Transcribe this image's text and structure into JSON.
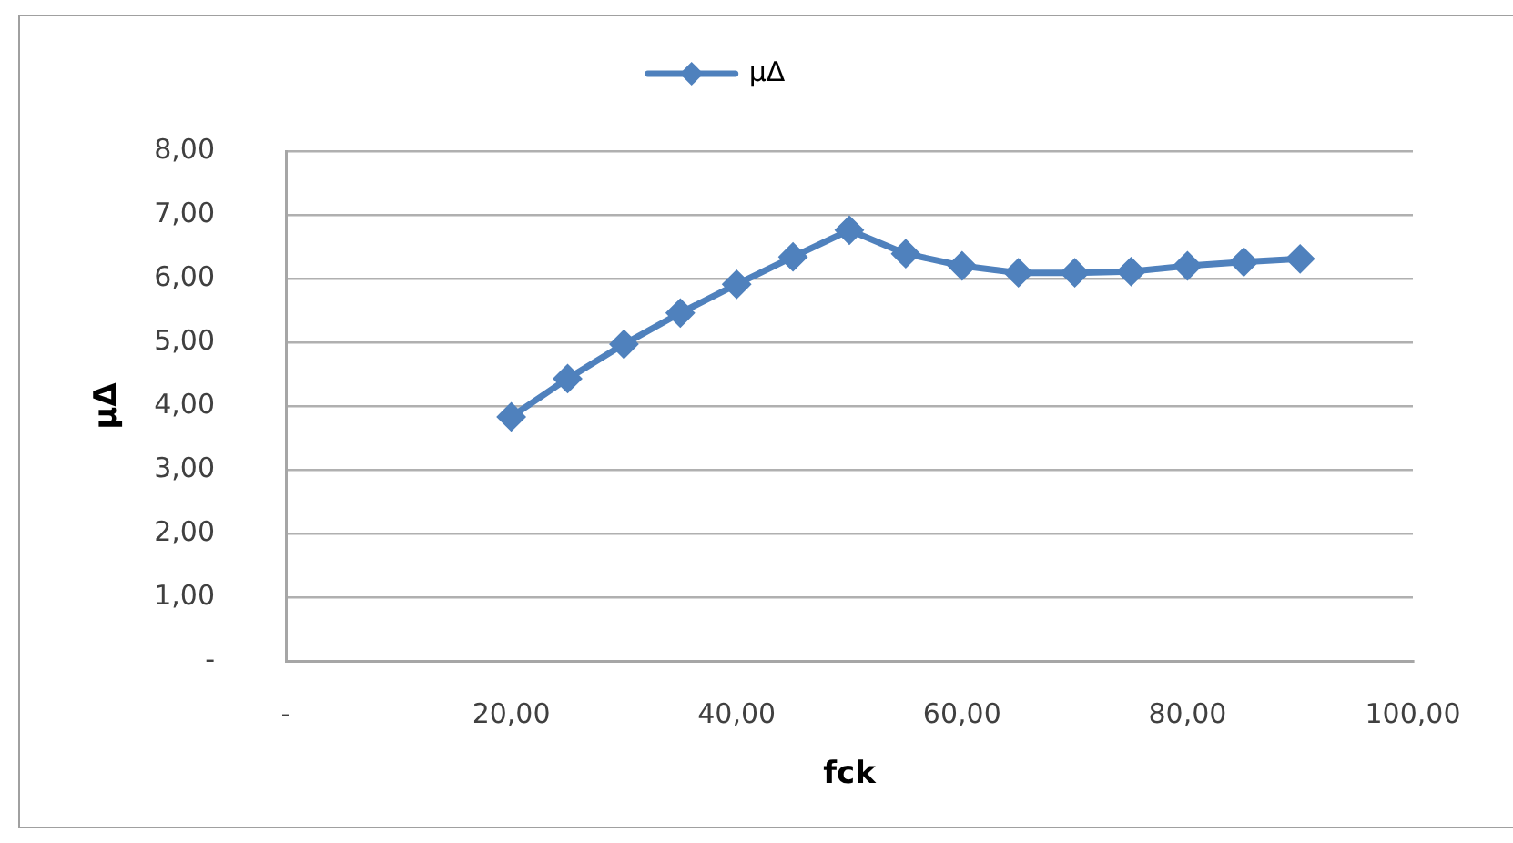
{
  "chart_data": {
    "type": "line",
    "xlabel": "fck",
    "ylabel": "μΔ",
    "x": [
      20,
      25,
      30,
      35,
      40,
      45,
      50,
      55,
      60,
      65,
      70,
      75,
      80,
      85,
      90
    ],
    "series": [
      {
        "name": "μΔ",
        "color": "#4f81bd",
        "values": [
          3.83,
          4.43,
          4.97,
          5.46,
          5.91,
          6.34,
          6.76,
          6.39,
          6.2,
          6.09,
          6.09,
          6.11,
          6.2,
          6.26,
          6.31
        ]
      }
    ],
    "xlim": [
      0,
      100
    ],
    "xticks": [
      {
        "value": 0,
        "label": "-"
      },
      {
        "value": 20,
        "label": "20,00"
      },
      {
        "value": 40,
        "label": "40,00"
      },
      {
        "value": 60,
        "label": "60,00"
      },
      {
        "value": 80,
        "label": "80,00"
      },
      {
        "value": 100,
        "label": "100,00"
      }
    ],
    "ylim": [
      0,
      8
    ],
    "yticks": [
      {
        "value": 0,
        "label": "-"
      },
      {
        "value": 1,
        "label": "1,00"
      },
      {
        "value": 2,
        "label": "2,00"
      },
      {
        "value": 3,
        "label": "3,00"
      },
      {
        "value": 4,
        "label": "4,00"
      },
      {
        "value": 5,
        "label": "5,00"
      },
      {
        "value": 6,
        "label": "6,00"
      },
      {
        "value": 7,
        "label": "7,00"
      },
      {
        "value": 8,
        "label": "8,00"
      }
    ],
    "grid": "y",
    "legend": "top",
    "marker": "diamond",
    "line_style": "solid"
  }
}
